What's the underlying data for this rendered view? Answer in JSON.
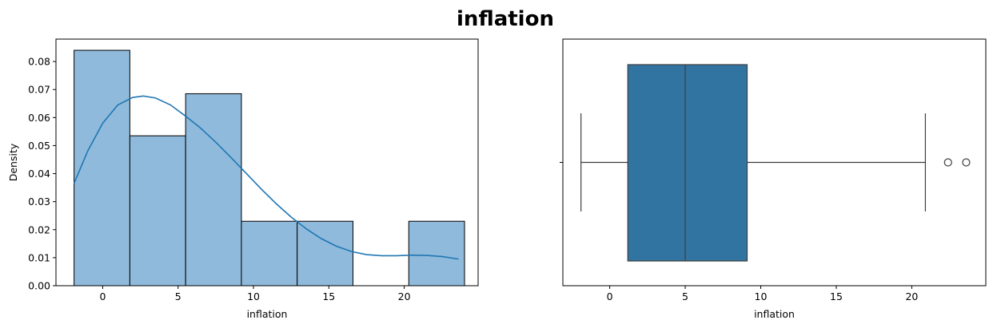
{
  "suptitle": "inflation",
  "chart_data": [
    {
      "type": "histogram",
      "xlabel": "inflation",
      "ylabel": "Density",
      "xlim": [
        -3.1,
        24.9
      ],
      "ylim": [
        0,
        0.088
      ],
      "xticks": [
        0,
        5,
        10,
        15,
        20
      ],
      "yticks": [
        0.0,
        0.01,
        0.02,
        0.03,
        0.04,
        0.05,
        0.06,
        0.07,
        0.08
      ],
      "bin_edges": [
        -1.9,
        1.8,
        5.5,
        9.2,
        12.9,
        16.6,
        20.3,
        24.0
      ],
      "values": [
        0.084,
        0.0535,
        0.0685,
        0.023,
        0.023,
        0.0,
        0.023
      ],
      "bar_color": "#8fbadb",
      "kde": {
        "color": "#1f77b4",
        "x": [
          -1.9,
          -1.0,
          0.0,
          1.0,
          2.0,
          2.7,
          3.5,
          4.5,
          5.5,
          6.5,
          7.5,
          8.5,
          9.5,
          10.5,
          11.5,
          12.5,
          13.5,
          14.5,
          15.5,
          16.5,
          17.5,
          18.5,
          19.5,
          20.5,
          21.5,
          22.5,
          23.6
        ],
        "y": [
          0.0365,
          0.048,
          0.058,
          0.0645,
          0.0672,
          0.0677,
          0.067,
          0.0645,
          0.0605,
          0.0562,
          0.0512,
          0.0458,
          0.0402,
          0.0346,
          0.0293,
          0.0245,
          0.0203,
          0.0168,
          0.0141,
          0.0122,
          0.0111,
          0.0107,
          0.0107,
          0.0109,
          0.0108,
          0.0104,
          0.0095
        ]
      }
    },
    {
      "type": "box",
      "xlabel": "inflation",
      "xlim": [
        -3.1,
        24.9
      ],
      "xticks": [
        0,
        5,
        10,
        15,
        20
      ],
      "whisker_low": -1.9,
      "q1": 1.2,
      "median": 5.0,
      "q3": 9.1,
      "whisker_high": 20.9,
      "outliers": [
        22.4,
        23.6
      ],
      "box_color": "#3274a1"
    }
  ]
}
